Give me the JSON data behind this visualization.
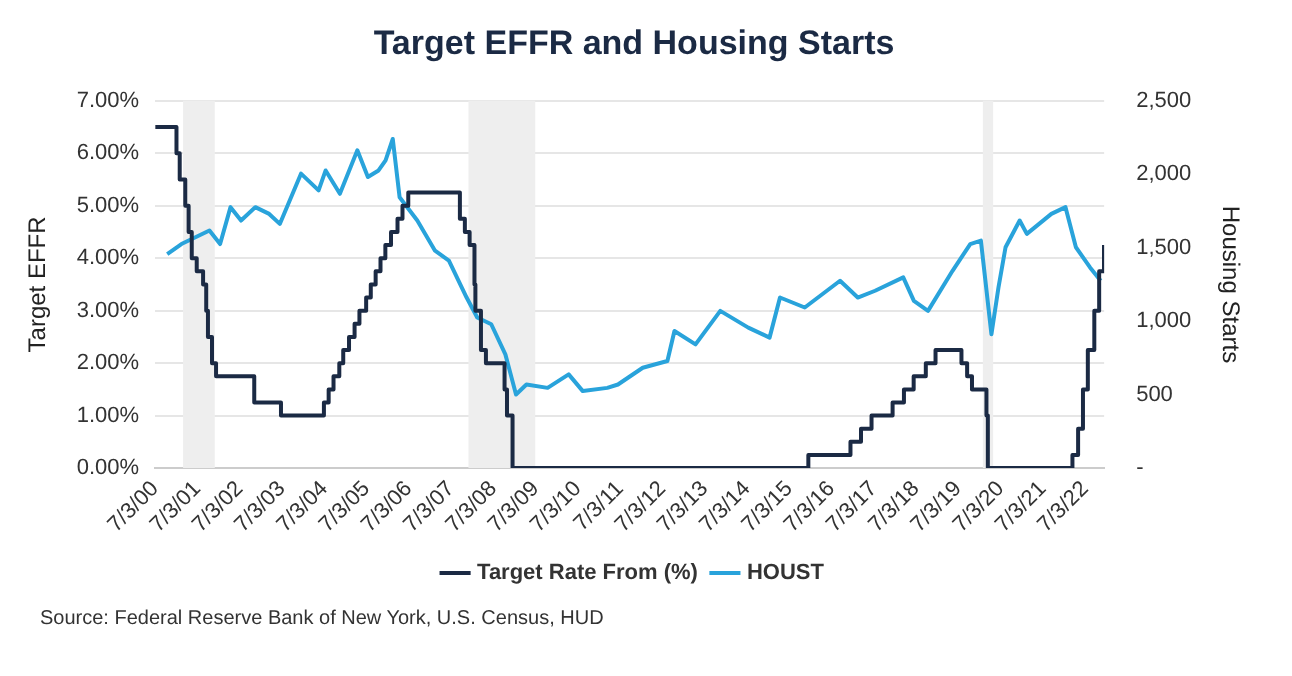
{
  "chart_data": {
    "type": "line",
    "title": "Target EFFR and Housing Starts",
    "ylabel": "Target EFFR",
    "y2label": "Housing Starts",
    "annotations": [
      "Source: Federal Reserve Bank of New York, U.S. Census, HUD"
    ],
    "xlim": [
      "2000-07-03",
      "2022-12-15"
    ],
    "xticks": [
      {
        "value": "2000-07-03",
        "label": "7/3/00"
      },
      {
        "value": "2001-07-03",
        "label": "7/3/01"
      },
      {
        "value": "2002-07-03",
        "label": "7/3/02"
      },
      {
        "value": "2003-07-03",
        "label": "7/3/03"
      },
      {
        "value": "2004-07-03",
        "label": "7/3/04"
      },
      {
        "value": "2005-07-03",
        "label": "7/3/05"
      },
      {
        "value": "2006-07-03",
        "label": "7/3/06"
      },
      {
        "value": "2007-07-03",
        "label": "7/3/07"
      },
      {
        "value": "2008-07-03",
        "label": "7/3/08"
      },
      {
        "value": "2009-07-03",
        "label": "7/3/09"
      },
      {
        "value": "2010-07-03",
        "label": "7/3/10"
      },
      {
        "value": "2011-07-03",
        "label": "7/3/11"
      },
      {
        "value": "2012-07-03",
        "label": "7/3/12"
      },
      {
        "value": "2013-07-03",
        "label": "7/3/13"
      },
      {
        "value": "2014-07-03",
        "label": "7/3/14"
      },
      {
        "value": "2015-07-03",
        "label": "7/3/15"
      },
      {
        "value": "2016-07-03",
        "label": "7/3/16"
      },
      {
        "value": "2017-07-03",
        "label": "7/3/17"
      },
      {
        "value": "2018-07-03",
        "label": "7/3/18"
      },
      {
        "value": "2019-07-03",
        "label": "7/3/19"
      },
      {
        "value": "2020-07-03",
        "label": "7/3/20"
      },
      {
        "value": "2021-07-03",
        "label": "7/3/21"
      },
      {
        "value": "2022-07-03",
        "label": "7/3/22"
      }
    ],
    "ylim": [
      0,
      7
    ],
    "yticks": [
      {
        "value": 0,
        "label": "0.00%"
      },
      {
        "value": 1,
        "label": "1.00%"
      },
      {
        "value": 2,
        "label": "2.00%"
      },
      {
        "value": 3,
        "label": "3.00%"
      },
      {
        "value": 4,
        "label": "4.00%"
      },
      {
        "value": 5,
        "label": "5.00%"
      },
      {
        "value": 6,
        "label": "6.00%"
      },
      {
        "value": 7,
        "label": "7.00%"
      }
    ],
    "y2lim": [
      0,
      2500
    ],
    "y2ticks": [
      {
        "value": 0,
        "label": "-"
      },
      500,
      {
        "value": 1000,
        "label": "1,000"
      },
      {
        "value": 1500,
        "label": "1,500"
      },
      {
        "value": 2000,
        "label": "2,000"
      },
      {
        "value": 2500,
        "label": "2,500"
      }
    ],
    "grid": "y",
    "legend": "bottom",
    "marker": "none",
    "line_style": "solid",
    "bands": [
      {
        "axis": "x",
        "from": "2001-03-01",
        "to": "2001-11-30",
        "color": "#eeeeee"
      },
      {
        "axis": "x",
        "from": "2007-12-01",
        "to": "2009-06-30",
        "color": "#eeeeee"
      },
      {
        "axis": "x",
        "from": "2020-02-01",
        "to": "2020-04-30",
        "color": "#eeeeee"
      }
    ],
    "series": [
      {
        "name": "Target Rate From (%)",
        "type": "step",
        "color": "#1b2a44",
        "x": [
          "2000-07-03",
          "2001-01-03",
          "2001-01-31",
          "2001-03-20",
          "2001-04-18",
          "2001-05-15",
          "2001-06-27",
          "2001-08-21",
          "2001-09-17",
          "2001-10-02",
          "2001-11-06",
          "2001-12-11",
          "2002-11-06",
          "2003-06-25",
          "2004-06-30",
          "2004-08-10",
          "2004-09-21",
          "2004-11-10",
          "2004-12-14",
          "2005-02-02",
          "2005-03-22",
          "2005-05-03",
          "2005-06-30",
          "2005-08-09",
          "2005-09-20",
          "2005-11-01",
          "2005-12-13",
          "2006-01-31",
          "2006-03-28",
          "2006-05-10",
          "2006-06-29",
          "2007-09-18",
          "2007-10-31",
          "2007-12-11",
          "2008-01-22",
          "2008-01-30",
          "2008-03-18",
          "2008-04-30",
          "2008-10-08",
          "2008-10-29",
          "2008-12-16",
          "2015-12-16",
          "2016-12-14",
          "2017-03-15",
          "2017-06-14",
          "2017-12-13",
          "2018-03-21",
          "2018-06-13",
          "2018-09-26",
          "2018-12-19",
          "2019-07-31",
          "2019-09-18",
          "2019-10-30",
          "2020-03-03",
          "2020-03-15",
          "2022-03-16",
          "2022-05-04",
          "2022-06-15",
          "2022-07-27",
          "2022-09-21",
          "2022-11-02",
          "2022-12-14"
        ],
        "values": [
          6.5,
          6.0,
          5.5,
          5.0,
          4.5,
          4.0,
          3.75,
          3.5,
          3.0,
          2.5,
          2.0,
          1.75,
          1.25,
          1.0,
          1.25,
          1.5,
          1.75,
          2.0,
          2.25,
          2.5,
          2.75,
          3.0,
          3.25,
          3.5,
          3.75,
          4.0,
          4.25,
          4.5,
          4.75,
          5.0,
          5.25,
          4.75,
          4.5,
          4.25,
          3.5,
          3.0,
          2.25,
          2.0,
          1.5,
          1.0,
          0,
          0.25,
          0.5,
          0.75,
          1.0,
          1.25,
          1.5,
          1.75,
          2.0,
          2.25,
          2.0,
          1.75,
          1.5,
          1.0,
          0,
          0.25,
          0.75,
          1.5,
          2.25,
          3.0,
          3.75,
          4.25
        ]
      },
      {
        "name": "HOUST",
        "axis": "y2",
        "color": "#29a3db",
        "x": [
          "2000-10",
          "2001-02",
          "2001-10",
          "2002-01",
          "2002-04",
          "2002-07",
          "2002-11",
          "2003-03",
          "2003-06",
          "2003-12",
          "2004-05",
          "2004-07",
          "2004-11",
          "2005-04",
          "2005-07",
          "2005-10",
          "2005-12",
          "2006-02",
          "2006-04",
          "2006-09",
          "2007-02",
          "2007-06",
          "2007-11",
          "2008-02",
          "2008-06",
          "2008-10",
          "2009-01",
          "2009-04",
          "2009-10",
          "2010-04",
          "2010-08",
          "2011-03",
          "2011-06",
          "2012-01",
          "2012-08",
          "2012-10",
          "2013-04",
          "2013-11",
          "2014-07",
          "2015-01",
          "2015-04",
          "2015-11",
          "2016-09",
          "2017-02",
          "2017-07",
          "2018-03",
          "2018-06",
          "2018-10",
          "2019-05",
          "2019-10",
          "2020-01",
          "2020-04",
          "2020-06",
          "2020-08",
          "2020-12",
          "2021-02",
          "2021-09",
          "2022-01",
          "2022-04",
          "2022-08",
          "2022-11"
        ],
        "values": [
          1457,
          1525,
          1617,
          1525,
          1776,
          1685,
          1776,
          1730,
          1662,
          2004,
          1890,
          2026,
          1867,
          2163,
          1981,
          2026,
          2095,
          2240,
          1844,
          1685,
          1480,
          1412,
          1161,
          1025,
          979,
          774,
          501,
          569,
          546,
          638,
          524,
          546,
          569,
          683,
          729,
          933,
          842,
          1070,
          956,
          888,
          1161,
          1093,
          1275,
          1161,
          1207,
          1298,
          1138,
          1070,
          1343,
          1525,
          1548,
          911,
          1230,
          1503,
          1685,
          1594,
          1730,
          1776,
          1503,
          1366,
          1275
        ]
      }
    ]
  }
}
